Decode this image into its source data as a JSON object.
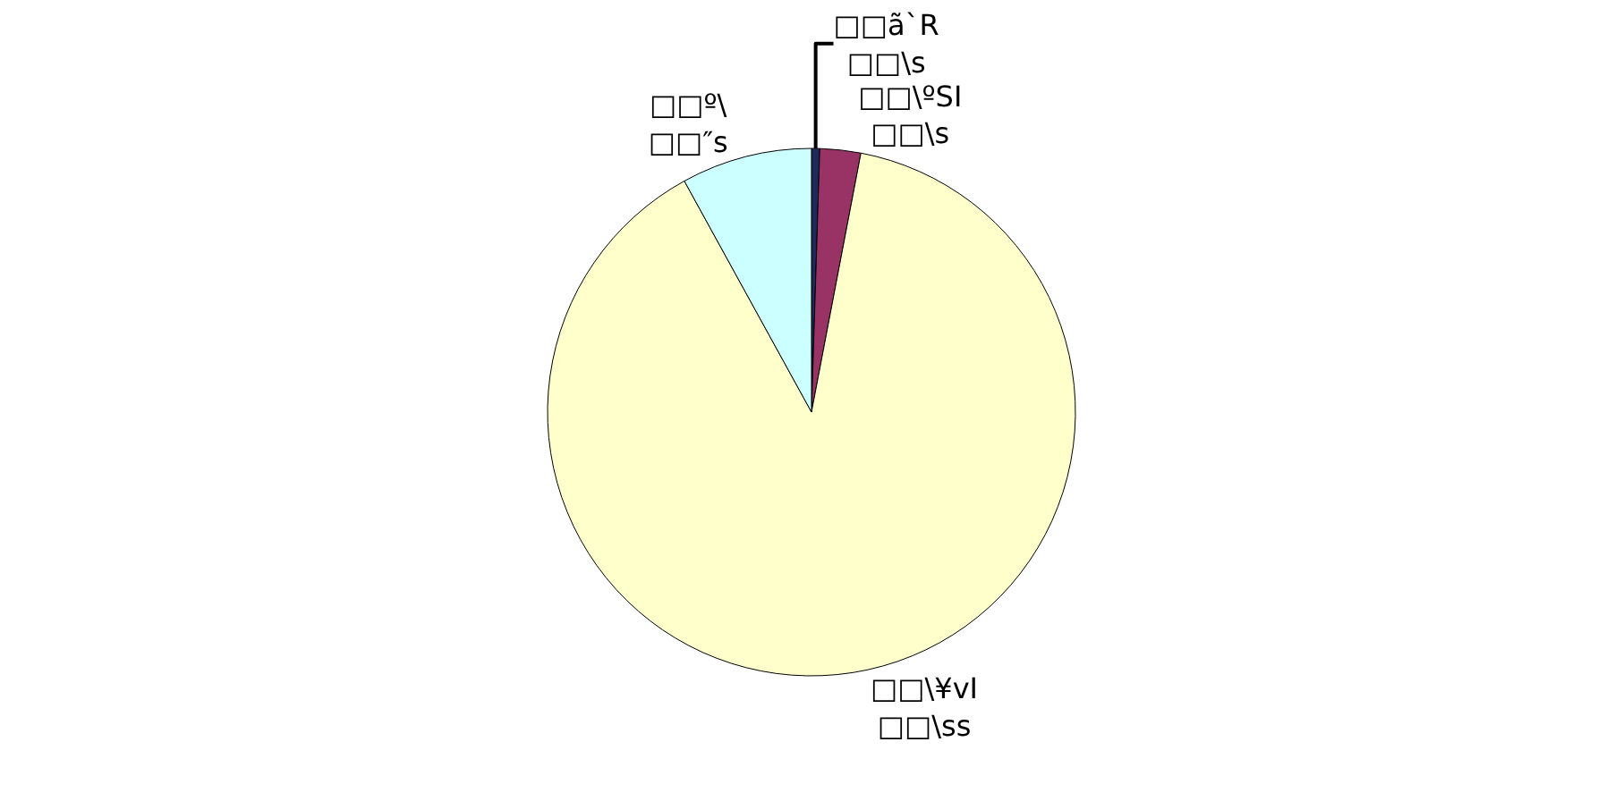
{
  "chart_data": {
    "type": "pie",
    "categories": [
      "□□ã`R\n□□\\s",
      "□□\\ºSI\n□□\\s",
      "□□\\¥vI\n□□\\ss",
      "□□º\\\n□□″s"
    ],
    "values": [
      0.5,
      2.5,
      89,
      8
    ],
    "colors": [
      "#1f2a5c",
      "#993366",
      "#ffffcc",
      "#ccffff"
    ],
    "legend": false
  }
}
